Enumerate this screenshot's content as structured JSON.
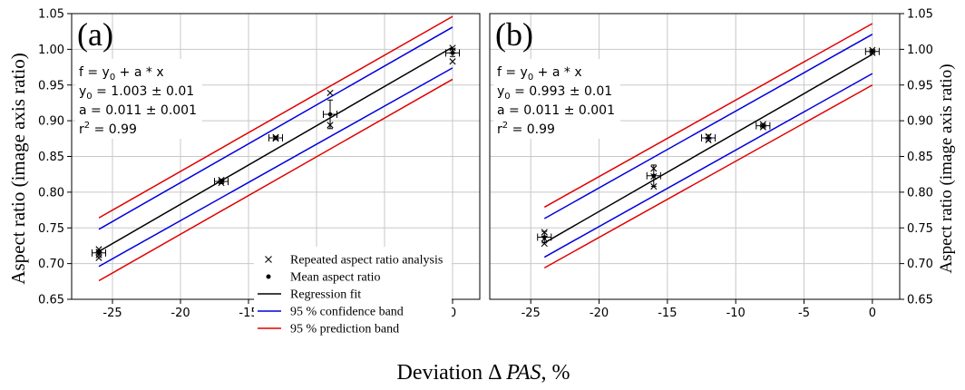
{
  "figure": {
    "xlabel_prefix": "Deviation Δ ",
    "xlabel_italic": "PAS",
    "xlabel_suffix": ", %",
    "ylabel_left": "Aspect ratio (image axis ratio)",
    "ylabel_right": "Aspect ratio (image axis ratio)"
  },
  "legend": {
    "items": [
      {
        "label": "Repeated aspect ratio analysis",
        "marker": "cross",
        "color": "#000000"
      },
      {
        "label": "Mean aspect ratio",
        "marker": "dot",
        "color": "#000000"
      },
      {
        "label": "Regression fit",
        "marker": "line",
        "color": "#000000"
      },
      {
        "label": "95 % confidence band",
        "marker": "line",
        "color": "#0000dd"
      },
      {
        "label": "95 % prediction band",
        "marker": "line",
        "color": "#e00000"
      }
    ]
  },
  "colors": {
    "fit": "#000000",
    "confidence": "#0000dd",
    "prediction": "#e00000",
    "grid": "#c8c8c8"
  },
  "chart_data": [
    {
      "type": "scatter",
      "panel_label": "(a)",
      "x_ticks": [
        "-25",
        "-20",
        "-15",
        "-10",
        "-5",
        "0"
      ],
      "y_ticks": [
        "0.65",
        "0.70",
        "0.75",
        "0.80",
        "0.85",
        "0.90",
        "0.95",
        "1.00",
        "1.05"
      ],
      "xlim": [
        -28,
        2
      ],
      "ylim": [
        0.65,
        1.05
      ],
      "grid": true,
      "y_axis_side": "left",
      "equation": {
        "line1": "f = y",
        "line1_sub": "0",
        "line1_rest": " + a * x",
        "line2": "y",
        "line2_sub": "0",
        "line2_rest": " = 1.003 ± 0.01",
        "line3": "a  = 0.011 ± 0.001",
        "line4": "r",
        "line4_sup": "2",
        "line4_rest": "  = 0.99"
      },
      "fit": {
        "intercept": 1.003,
        "slope": 0.011
      },
      "confidence_band": {
        "x": [
          -26,
          0
        ],
        "lower": [
          0.696,
          0.974
        ],
        "upper": [
          0.748,
          1.031
        ]
      },
      "prediction_band": {
        "x": [
          -26,
          0
        ],
        "lower": [
          0.676,
          0.958
        ],
        "upper": [
          0.764,
          1.046
        ]
      },
      "means": [
        {
          "x": -26,
          "y": 0.715,
          "xerr": 0.5,
          "yerr": 0.004
        },
        {
          "x": -17,
          "y": 0.815,
          "xerr": 0.5,
          "yerr": 0.003
        },
        {
          "x": -13,
          "y": 0.876,
          "xerr": 0.5,
          "yerr": 0.002
        },
        {
          "x": -9,
          "y": 0.909,
          "xerr": 0.5,
          "yerr": 0.02
        },
        {
          "x": 0,
          "y": 0.995,
          "xerr": 0.5,
          "yerr": 0.005
        }
      ],
      "repeated": [
        {
          "x": -26,
          "y": 0.708
        },
        {
          "x": -26,
          "y": 0.712
        },
        {
          "x": -26,
          "y": 0.716
        },
        {
          "x": -26,
          "y": 0.72
        },
        {
          "x": -17,
          "y": 0.813
        },
        {
          "x": -17,
          "y": 0.817
        },
        {
          "x": -13,
          "y": 0.875
        },
        {
          "x": -13,
          "y": 0.877
        },
        {
          "x": -9,
          "y": 0.894
        },
        {
          "x": -9,
          "y": 0.939
        },
        {
          "x": 0,
          "y": 0.983
        },
        {
          "x": 0,
          "y": 0.998
        },
        {
          "x": 0,
          "y": 1.002
        }
      ]
    },
    {
      "type": "scatter",
      "panel_label": "(b)",
      "x_ticks": [
        "-25",
        "-20",
        "-15",
        "-10",
        "-5",
        "0"
      ],
      "y_ticks": [
        "0.65",
        "0.70",
        "0.75",
        "0.80",
        "0.85",
        "0.90",
        "0.95",
        "1.00",
        "1.05"
      ],
      "xlim": [
        -28,
        2
      ],
      "ylim": [
        0.65,
        1.05
      ],
      "grid": true,
      "y_axis_side": "right",
      "equation": {
        "line1": "f = y",
        "line1_sub": "0",
        "line1_rest": " + a * x",
        "line2": "y",
        "line2_sub": "0",
        "line2_rest": " = 0.993 ± 0.01",
        "line3": "a  = 0.011 ± 0.001",
        "line4": "r",
        "line4_sup": "2",
        "line4_rest": "  = 0.99"
      },
      "fit": {
        "intercept": 0.993,
        "slope": 0.011
      },
      "confidence_band": {
        "x": [
          -24,
          0
        ],
        "lower": [
          0.709,
          0.966
        ],
        "upper": [
          0.763,
          1.021
        ]
      },
      "prediction_band": {
        "x": [
          -24,
          0
        ],
        "lower": [
          0.694,
          0.95
        ],
        "upper": [
          0.779,
          1.036
        ]
      },
      "means": [
        {
          "x": -24,
          "y": 0.737,
          "xerr": 0.5,
          "yerr": 0.008
        },
        {
          "x": -16,
          "y": 0.823,
          "xerr": 0.5,
          "yerr": 0.015
        },
        {
          "x": -12,
          "y": 0.876,
          "xerr": 0.5,
          "yerr": 0.004
        },
        {
          "x": -8,
          "y": 0.893,
          "xerr": 0.5,
          "yerr": 0.003
        },
        {
          "x": 0,
          "y": 0.997,
          "xerr": 0.5,
          "yerr": 0.003
        }
      ],
      "repeated": [
        {
          "x": -24,
          "y": 0.728
        },
        {
          "x": -24,
          "y": 0.735
        },
        {
          "x": -24,
          "y": 0.744
        },
        {
          "x": -16,
          "y": 0.808
        },
        {
          "x": -16,
          "y": 0.822
        },
        {
          "x": -16,
          "y": 0.833
        },
        {
          "x": -12,
          "y": 0.873
        },
        {
          "x": -12,
          "y": 0.878
        },
        {
          "x": -8,
          "y": 0.891
        },
        {
          "x": -8,
          "y": 0.895
        },
        {
          "x": 0,
          "y": 0.995
        },
        {
          "x": 0,
          "y": 0.999
        }
      ]
    }
  ]
}
